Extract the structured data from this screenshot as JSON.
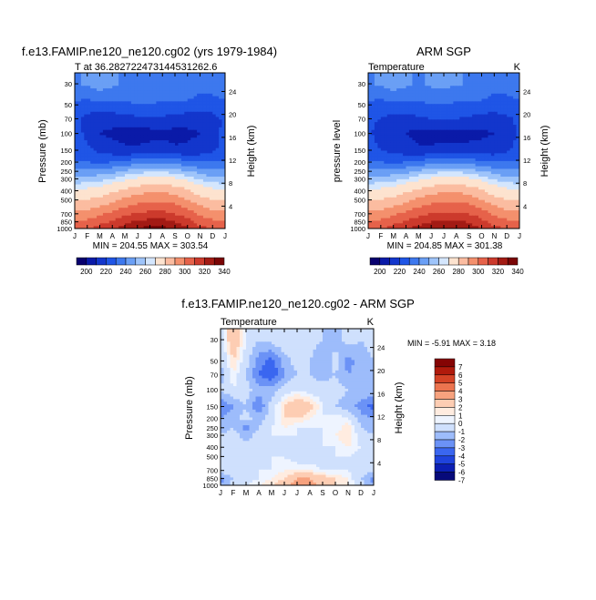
{
  "panels": [
    {
      "title": "f.e13.FAMIP.ne120_ne120.cg02 (yrs 1979-1984)",
      "left_caption": "T at 36.282722473144531262.6",
      "right_caption": "",
      "ylabel": "Pressure (mb)",
      "y2label": "Height (km)",
      "stats": "MIN = 204.55 MAX = 303.54"
    },
    {
      "title": "ARM SGP",
      "left_caption": "Temperature",
      "right_caption": "K",
      "ylabel": "pressure level",
      "y2label": "Height (km)",
      "stats": "MIN = 204.85 MAX = 301.38"
    },
    {
      "title": "f.e13.FAMIP.ne120_ne120.cg02 - ARM SGP",
      "left_caption": "Temperature",
      "right_caption": "K",
      "ylabel": "Pressure (mb)",
      "y2label": "Height (km)",
      "stats": "MIN =   -5.91 MAX =    3.18"
    }
  ],
  "chart_data": [
    {
      "type": "heatmap",
      "title": "f.e13.FAMIP.ne120_ne120.cg02 (yrs 1979-1984)",
      "units": "K",
      "x_ticks": [
        "J",
        "F",
        "M",
        "A",
        "M",
        "J",
        "J",
        "A",
        "S",
        "O",
        "N",
        "D",
        "J"
      ],
      "y_ticks": [
        "30",
        "50",
        "70",
        "100",
        "150",
        "200",
        "250",
        "300",
        "400",
        "500",
        "700",
        "850",
        "1000"
      ],
      "y2_ticks": [
        "24",
        "20",
        "16",
        "12",
        "8",
        "4"
      ],
      "pressure_levels": [
        30,
        50,
        70,
        100,
        150,
        200,
        250,
        300,
        400,
        500,
        700,
        850,
        1000
      ],
      "values": [
        [
          224,
          226,
          228,
          226,
          224,
          224,
          224,
          224,
          224,
          224,
          222,
          222,
          224
        ],
        [
          219,
          218,
          219,
          219,
          219,
          220,
          220,
          219,
          219,
          219,
          217,
          218,
          219
        ],
        [
          216,
          213,
          212,
          212,
          213,
          214,
          214,
          214,
          213,
          212,
          212,
          213,
          216
        ],
        [
          217,
          214,
          210,
          209,
          208,
          208,
          208,
          209,
          208,
          209,
          210,
          212,
          217
        ],
        [
          217,
          216,
          214,
          212,
          211,
          211,
          212,
          212,
          211,
          211,
          212,
          214,
          217
        ],
        [
          220,
          220,
          219,
          220,
          221,
          223,
          224,
          224,
          223,
          221,
          220,
          220,
          220
        ],
        [
          226,
          226,
          227,
          228,
          231,
          233,
          234,
          234,
          233,
          230,
          228,
          226,
          226
        ],
        [
          231,
          232,
          233,
          235,
          238,
          241,
          242,
          242,
          241,
          238,
          234,
          232,
          231
        ],
        [
          241,
          242,
          244,
          248,
          252,
          256,
          258,
          258,
          256,
          251,
          245,
          242,
          241
        ],
        [
          249,
          250,
          253,
          257,
          262,
          266,
          268,
          268,
          266,
          260,
          254,
          250,
          249
        ],
        [
          263,
          264,
          268,
          272,
          277,
          281,
          283,
          283,
          280,
          275,
          268,
          264,
          263
        ],
        [
          270,
          272,
          277,
          281,
          287,
          292,
          294,
          294,
          290,
          284,
          276,
          272,
          270
        ],
        [
          276,
          279,
          285,
          289,
          295,
          300,
          303,
          303,
          298,
          291,
          283,
          279,
          276
        ]
      ],
      "colorbar_labels": [
        "200",
        "220",
        "240",
        "260",
        "280",
        "300",
        "320",
        "340"
      ]
    },
    {
      "type": "heatmap",
      "title": "ARM SGP",
      "units": "K",
      "x_ticks": [
        "J",
        "F",
        "M",
        "A",
        "M",
        "J",
        "J",
        "A",
        "S",
        "O",
        "N",
        "D",
        "J"
      ],
      "y_ticks": [
        "30",
        "50",
        "70",
        "100",
        "150",
        "200",
        "250",
        "300",
        "400",
        "500",
        "700",
        "850",
        "1000"
      ],
      "y2_ticks": [
        "24",
        "20",
        "16",
        "12",
        "8",
        "4"
      ],
      "pressure_levels": [
        30,
        50,
        70,
        100,
        150,
        200,
        250,
        300,
        400,
        500,
        700,
        850,
        1000
      ],
      "values": [
        [
          224,
          226,
          228,
          226,
          224,
          226,
          226,
          226,
          224,
          224,
          222,
          222,
          224
        ],
        [
          219,
          218,
          219,
          219,
          219,
          220,
          220,
          219,
          219,
          219,
          217,
          218,
          219
        ],
        [
          216,
          215,
          213,
          213,
          214,
          215,
          215,
          215,
          214,
          213,
          213,
          214,
          216
        ],
        [
          216,
          213,
          211,
          210,
          208,
          208,
          208,
          208,
          208,
          209,
          210,
          212,
          216
        ],
        [
          217,
          215,
          213,
          212,
          211,
          211,
          212,
          212,
          212,
          212,
          212,
          214,
          217
        ],
        [
          220,
          220,
          219,
          220,
          221,
          223,
          224,
          224,
          223,
          221,
          220,
          220,
          220
        ],
        [
          226,
          226,
          227,
          228,
          231,
          233,
          234,
          234,
          233,
          230,
          228,
          226,
          226
        ],
        [
          231,
          232,
          233,
          235,
          238,
          241,
          242,
          242,
          241,
          238,
          234,
          232,
          231
        ],
        [
          240,
          242,
          244,
          248,
          252,
          256,
          258,
          258,
          256,
          251,
          245,
          242,
          240
        ],
        [
          249,
          250,
          253,
          257,
          262,
          266,
          268,
          268,
          266,
          260,
          254,
          250,
          249
        ],
        [
          263,
          264,
          268,
          272,
          277,
          280,
          282,
          282,
          280,
          275,
          268,
          264,
          263
        ],
        [
          270,
          272,
          277,
          281,
          286,
          290,
          292,
          292,
          289,
          283,
          276,
          272,
          270
        ],
        [
          276,
          279,
          285,
          289,
          294,
          298,
          301,
          301,
          297,
          290,
          283,
          279,
          276
        ]
      ],
      "colorbar_labels": [
        "200",
        "220",
        "240",
        "260",
        "280",
        "300",
        "320",
        "340"
      ]
    },
    {
      "type": "heatmap",
      "title": "f.e13.FAMIP.ne120_ne120.cg02 - ARM SGP",
      "units": "K",
      "x_ticks": [
        "J",
        "F",
        "M",
        "A",
        "M",
        "J",
        "J",
        "A",
        "S",
        "O",
        "N",
        "D",
        "J"
      ],
      "y_ticks": [
        "30",
        "50",
        "70",
        "100",
        "150",
        "200",
        "250",
        "300",
        "400",
        "500",
        "700",
        "850",
        "1000"
      ],
      "y2_ticks": [
        "24",
        "20",
        "16",
        "12",
        "8",
        "4"
      ],
      "pressure_levels": [
        30,
        50,
        70,
        100,
        150,
        200,
        250,
        300,
        400,
        500,
        700,
        850,
        1000
      ],
      "values": [
        [
          -1.0,
          1.5,
          -0.5,
          -1.5,
          -1.0,
          -0.5,
          -0.5,
          -1.0,
          -1.5,
          -2.0,
          -1.0,
          -1.5,
          -1.0
        ],
        [
          -1.5,
          0.5,
          -1.0,
          -3.0,
          -4.0,
          -2.0,
          -1.0,
          -1.5,
          -2.5,
          -1.0,
          -3.0,
          -2.0,
          -1.5
        ],
        [
          -2.0,
          0.0,
          -1.5,
          -3.5,
          -4.5,
          -2.5,
          -1.5,
          -1.5,
          -2.0,
          -1.5,
          -2.5,
          -2.0,
          -2.0
        ],
        [
          -1.5,
          -0.5,
          -1.0,
          -2.0,
          -2.0,
          -1.0,
          -0.5,
          -1.0,
          -1.0,
          -1.0,
          -1.5,
          -1.5,
          -1.5
        ],
        [
          -3.5,
          -2.5,
          -1.5,
          -3.5,
          -1.0,
          0.5,
          1.5,
          1.0,
          -0.5,
          -1.5,
          -2.0,
          -3.0,
          -4.0
        ],
        [
          -2.5,
          -2.0,
          -1.0,
          -2.0,
          -1.0,
          0.5,
          0.5,
          0.0,
          -0.5,
          0.0,
          -0.5,
          -2.0,
          -2.5
        ],
        [
          -2.0,
          -1.5,
          -3.0,
          -1.5,
          -0.5,
          0.0,
          -0.5,
          -0.5,
          -0.5,
          -0.5,
          0.5,
          -1.5,
          -2.0
        ],
        [
          -1.5,
          -1.0,
          -2.0,
          -1.0,
          -0.5,
          -0.5,
          -0.5,
          -1.0,
          -0.5,
          0.0,
          0.5,
          -1.0,
          -1.5
        ],
        [
          -1.0,
          -0.5,
          -1.0,
          -0.5,
          -0.5,
          -0.5,
          -1.0,
          -1.0,
          -0.5,
          -0.5,
          0.0,
          -0.5,
          -1.0
        ],
        [
          -1.0,
          -0.5,
          -1.0,
          -0.5,
          -0.5,
          -0.5,
          -1.0,
          -1.0,
          -1.0,
          -0.5,
          -0.5,
          -1.0,
          -1.0
        ],
        [
          -1.0,
          -0.5,
          -0.5,
          -0.5,
          -0.5,
          0.0,
          0.0,
          0.0,
          -0.5,
          -0.5,
          -0.5,
          -1.0,
          -1.0
        ],
        [
          -3.0,
          -1.5,
          -1.0,
          -0.5,
          0.0,
          0.5,
          1.5,
          1.5,
          1.0,
          0.5,
          0.0,
          -1.5,
          -3.0
        ],
        [
          -2.5,
          -1.0,
          -0.5,
          0.0,
          0.5,
          1.0,
          2.0,
          2.0,
          1.0,
          0.5,
          0.0,
          -1.0,
          -2.5
        ]
      ],
      "colorbar_labels": [
        "7",
        "6",
        "5",
        "4",
        "3",
        "2",
        "1",
        "0",
        "-1",
        "-2",
        "-3",
        "-4",
        "-5",
        "-6",
        "-7"
      ]
    }
  ]
}
